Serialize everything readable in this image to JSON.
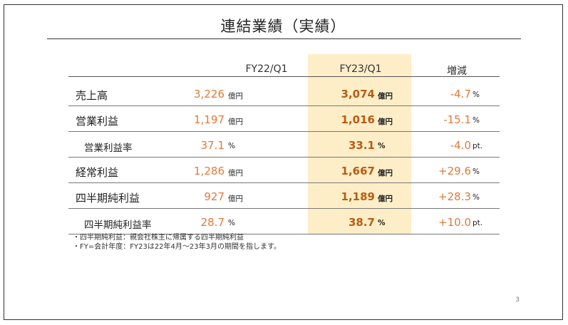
{
  "title": "連結業績（実績）",
  "headers": {
    "prev": "FY22/Q1",
    "cur": "FY23/Q1",
    "chg": "増減"
  },
  "rows": [
    {
      "label": "売上高",
      "prev": "3,226",
      "prev_unit": "億円",
      "cur": "3,074",
      "cur_unit": "億円",
      "chg": "-4.7",
      "chg_unit": "%"
    },
    {
      "label": "営業利益",
      "prev": "1,197",
      "prev_unit": "億円",
      "cur": "1,016",
      "cur_unit": "億円",
      "chg": "-15.1",
      "chg_unit": "%"
    },
    {
      "label": "営業利益率",
      "prev": "37.1",
      "prev_unit": "%",
      "cur": "33.1",
      "cur_unit": "%",
      "chg": "-4.0",
      "chg_unit": "pt."
    },
    {
      "label": "経常利益",
      "prev": "1,286",
      "prev_unit": "億円",
      "cur": "1,667",
      "cur_unit": "億円",
      "chg": "+29.6",
      "chg_unit": "%"
    },
    {
      "label": "四半期純利益",
      "prev": "927",
      "prev_unit": "億円",
      "cur": "1,189",
      "cur_unit": "億円",
      "chg": "+28.3",
      "chg_unit": "%"
    },
    {
      "label": "四半期純利益率",
      "prev": "28.7",
      "prev_unit": "%",
      "cur": "38.7",
      "cur_unit": "%",
      "chg": "+10.0",
      "chg_unit": "pt."
    }
  ],
  "notes": [
    "・四半期純利益：親会社株主に帰属する四半期純利益",
    "・FY=会計年度：FY23は22年4月～23年3月の期間を指します。"
  ],
  "page_number": "3",
  "colors": {
    "highlight": "#fdeec8",
    "value_prev": "#e07a3b",
    "value_cur": "#b85c12"
  }
}
